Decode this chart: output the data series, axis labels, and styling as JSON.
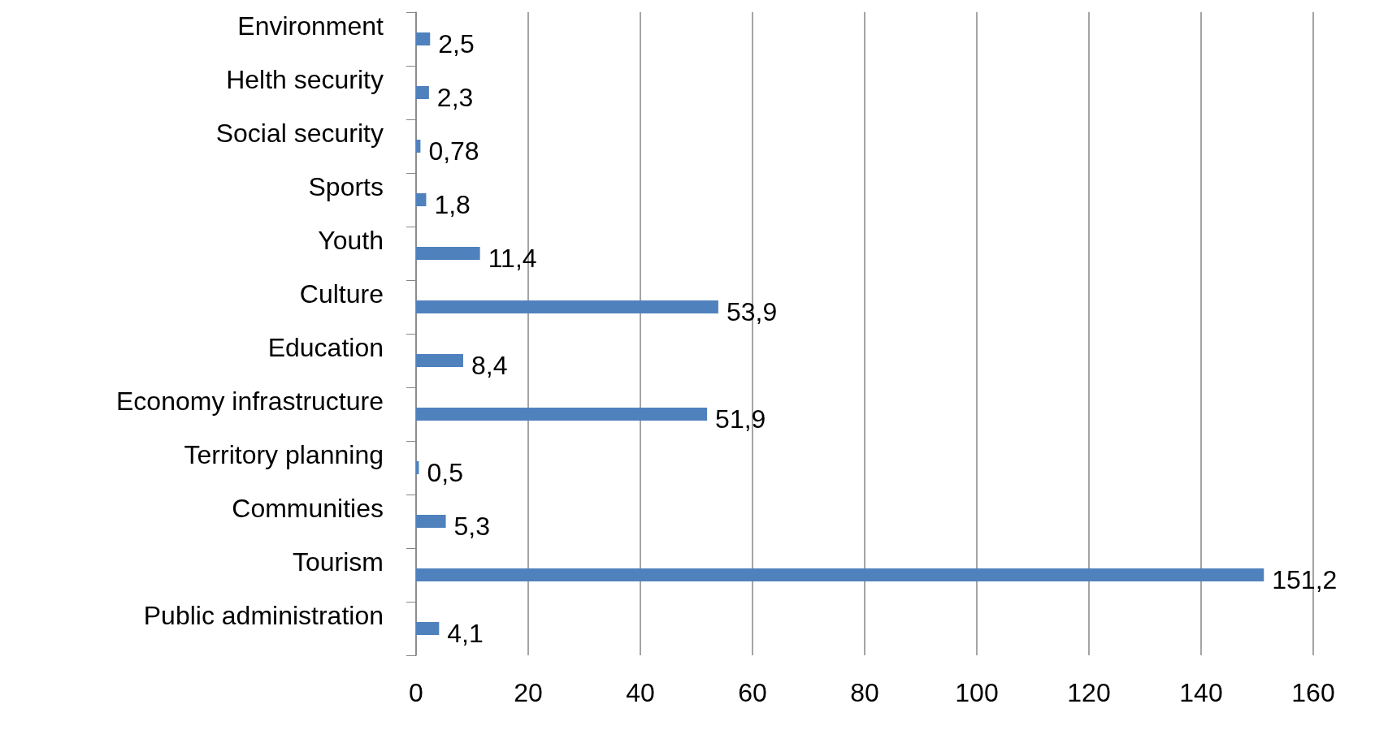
{
  "chart_data": {
    "type": "bar",
    "orientation": "horizontal",
    "categories": [
      "Environment",
      "Helth security",
      "Social security",
      "Sports",
      "Youth",
      "Culture",
      "Education",
      "Economy infrastructure",
      "Territory planning",
      "Communities",
      "Tourism",
      "Public administration"
    ],
    "series": [
      {
        "color": "#4f81bd",
        "values": [
          2.5,
          2.3,
          0.78,
          1.8,
          11.4,
          53.9,
          8.4,
          51.9,
          0.5,
          5.3,
          151.2,
          4.1
        ],
        "value_labels": [
          "2,5",
          "2,3",
          "0,78",
          "1,8",
          "11,4",
          "53,9",
          "8,4",
          "51,9",
          "0,5",
          "5,3",
          "151,2",
          "4,1"
        ]
      }
    ],
    "xlim": [
      0,
      160
    ],
    "xticks": [
      0,
      20,
      40,
      60,
      80,
      100,
      120,
      140,
      160
    ],
    "grid": "x"
  }
}
